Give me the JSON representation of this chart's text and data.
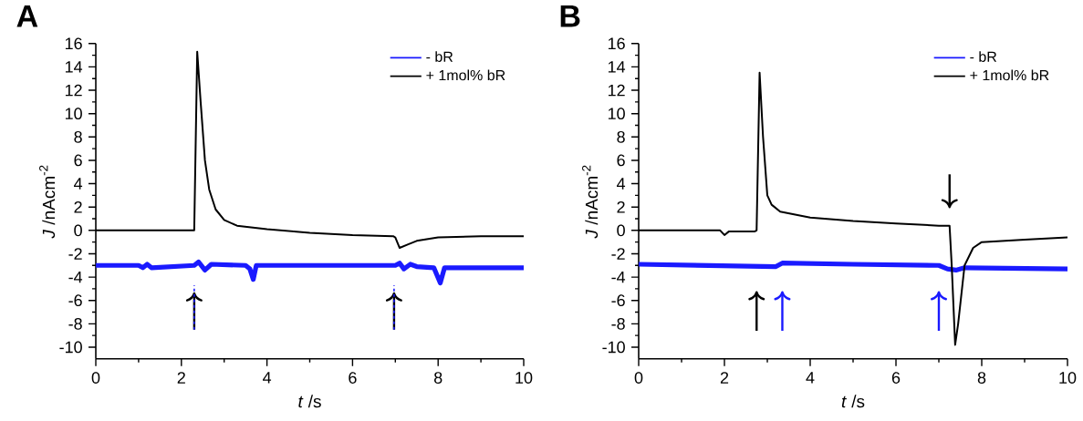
{
  "chart_data": [
    {
      "type": "line",
      "title": "A",
      "xlabel": "*t* /s",
      "ylabel": "*J* /nAcm$^{-2}$",
      "xlim": [
        0,
        10
      ],
      "ylim": [
        -11,
        16
      ],
      "xticks": [
        0,
        2,
        4,
        6,
        8,
        10
      ],
      "yticks": [
        -10,
        -8,
        -6,
        -4,
        -2,
        0,
        2,
        4,
        6,
        8,
        10,
        12,
        14,
        16
      ],
      "legend": "top right",
      "grid": false,
      "series": [
        {
          "name": "- bR",
          "color": "#1a1aff",
          "x": [
            0,
            1,
            1.1,
            1.2,
            1.3,
            2.3,
            2.4,
            2.55,
            2.7,
            3.5,
            3.6,
            3.68,
            3.75,
            5,
            7,
            7.1,
            7.2,
            7.35,
            7.5,
            7.9,
            8.05,
            8.15,
            9,
            10
          ],
          "values": [
            -3,
            -3,
            -3.2,
            -2.9,
            -3.2,
            -3,
            -2.7,
            -3.4,
            -2.9,
            -3,
            -3.3,
            -4.2,
            -3,
            -3,
            -3,
            -2.8,
            -3.3,
            -2.9,
            -3.1,
            -3.2,
            -4.5,
            -3.2,
            -3.2,
            -3.2
          ]
        },
        {
          "name": "+ 1mol% bR",
          "color": "#000000",
          "x": [
            0,
            1,
            2,
            2.3,
            2.37,
            2.45,
            2.55,
            2.65,
            2.8,
            3,
            3.3,
            4,
            5,
            6,
            6.95,
            7,
            7.1,
            7.3,
            7.5,
            8,
            9,
            10
          ],
          "values": [
            0,
            0,
            0,
            0,
            15.3,
            11,
            6,
            3.5,
            1.8,
            0.9,
            0.4,
            0.1,
            -0.2,
            -0.4,
            -0.5,
            -0.6,
            -1.5,
            -1.2,
            -0.9,
            -0.6,
            -0.5,
            -0.5
          ]
        }
      ]
    },
    {
      "type": "line",
      "title": "B",
      "xlabel": "*t* /s",
      "ylabel": "*J* /nAcm$^{-2}$",
      "xlim": [
        0,
        10
      ],
      "ylim": [
        -11,
        16
      ],
      "xticks": [
        0,
        2,
        4,
        6,
        8,
        10
      ],
      "yticks": [
        -10,
        -8,
        -6,
        -4,
        -2,
        0,
        2,
        4,
        6,
        8,
        10,
        12,
        14,
        16
      ],
      "legend": "top right",
      "grid": false,
      "series": [
        {
          "name": "- bR",
          "color": "#1a1aff",
          "x": [
            0,
            3.2,
            3.35,
            5,
            7,
            7.2,
            7.4,
            7.6,
            10
          ],
          "values": [
            -2.9,
            -3.1,
            -2.8,
            -2.9,
            -3,
            -3.3,
            -3.4,
            -3.2,
            -3.3
          ]
        },
        {
          "name": "+ 1mol% bR",
          "color": "#000000",
          "x": [
            0,
            1.9,
            2,
            2.1,
            2.7,
            2.75,
            2.82,
            2.9,
            3,
            3.1,
            3.3,
            4,
            5,
            6,
            7,
            7.25,
            7.3,
            7.38,
            7.45,
            7.6,
            7.8,
            8,
            9,
            10
          ],
          "values": [
            0,
            0,
            -0.4,
            -0.1,
            -0.1,
            0,
            13.5,
            8,
            3,
            2.2,
            1.6,
            1.1,
            0.8,
            0.6,
            0.4,
            0.4,
            -3,
            -9.8,
            -8,
            -3,
            -1.5,
            -1,
            -0.8,
            -0.6
          ]
        }
      ]
    }
  ]
}
